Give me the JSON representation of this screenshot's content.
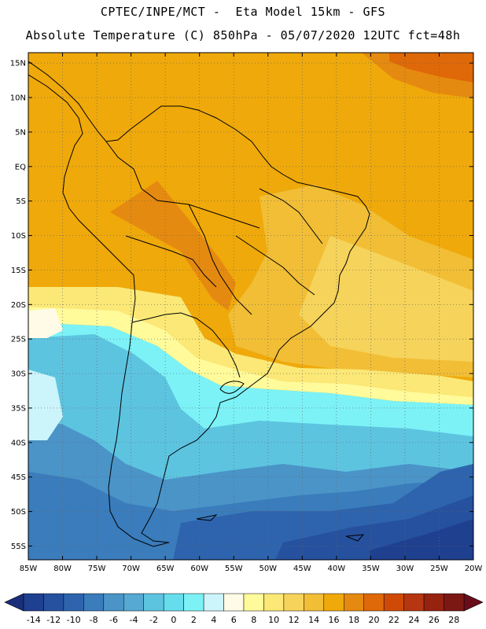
{
  "header": {
    "line1": "CPTEC/INPE/MCT -  Eta Model 15km - GFS",
    "line2": "Absolute Temperature (C) 850hPa - 05/07/2020 12UTC fct=48h"
  },
  "map": {
    "lat_labels": [
      "15N",
      "10N",
      "5N",
      "EQ",
      "5S",
      "10S",
      "15S",
      "20S",
      "25S",
      "30S",
      "35S",
      "40S",
      "45S",
      "50S",
      "55S"
    ],
    "lat_values": [
      15,
      10,
      5,
      0,
      -5,
      -10,
      -15,
      -20,
      -25,
      -30,
      -35,
      -40,
      -45,
      -50,
      -55
    ],
    "lon_labels": [
      "85W",
      "80W",
      "75W",
      "70W",
      "65W",
      "60W",
      "55W",
      "50W",
      "45W",
      "40W",
      "35W",
      "30W",
      "25W",
      "20W"
    ],
    "lon_values": [
      -85,
      -80,
      -75,
      -70,
      -65,
      -60,
      -55,
      -50,
      -45,
      -40,
      -35,
      -30,
      -25,
      -20
    ],
    "extent": {
      "lon_min": -85,
      "lon_max": -20,
      "lat_min": -57,
      "lat_max": 16.5
    }
  },
  "colorbar": {
    "labels": [
      "-14",
      "-12",
      "-10",
      "-8",
      "-6",
      "-4",
      "-2",
      "0",
      "2",
      "4",
      "6",
      "8",
      "10",
      "12",
      "14",
      "16",
      "18",
      "20",
      "22",
      "24",
      "26",
      "28"
    ],
    "colors": [
      "#1f3f8f",
      "#26519f",
      "#2e64ad",
      "#3a7cbc",
      "#4a94c8",
      "#55a9d2",
      "#5dc4e0",
      "#66dded",
      "#7cf2f6",
      "#ccf4fb",
      "#fffbe6",
      "#fffa9a",
      "#fbe876",
      "#f6d35a",
      "#f1be36",
      "#efa90a",
      "#e58a10",
      "#df6808",
      "#cf4a06",
      "#b53610",
      "#962210",
      "#7c1814"
    ],
    "under_color": "#1b2e7a",
    "over_color": "#6a0d1a"
  }
}
